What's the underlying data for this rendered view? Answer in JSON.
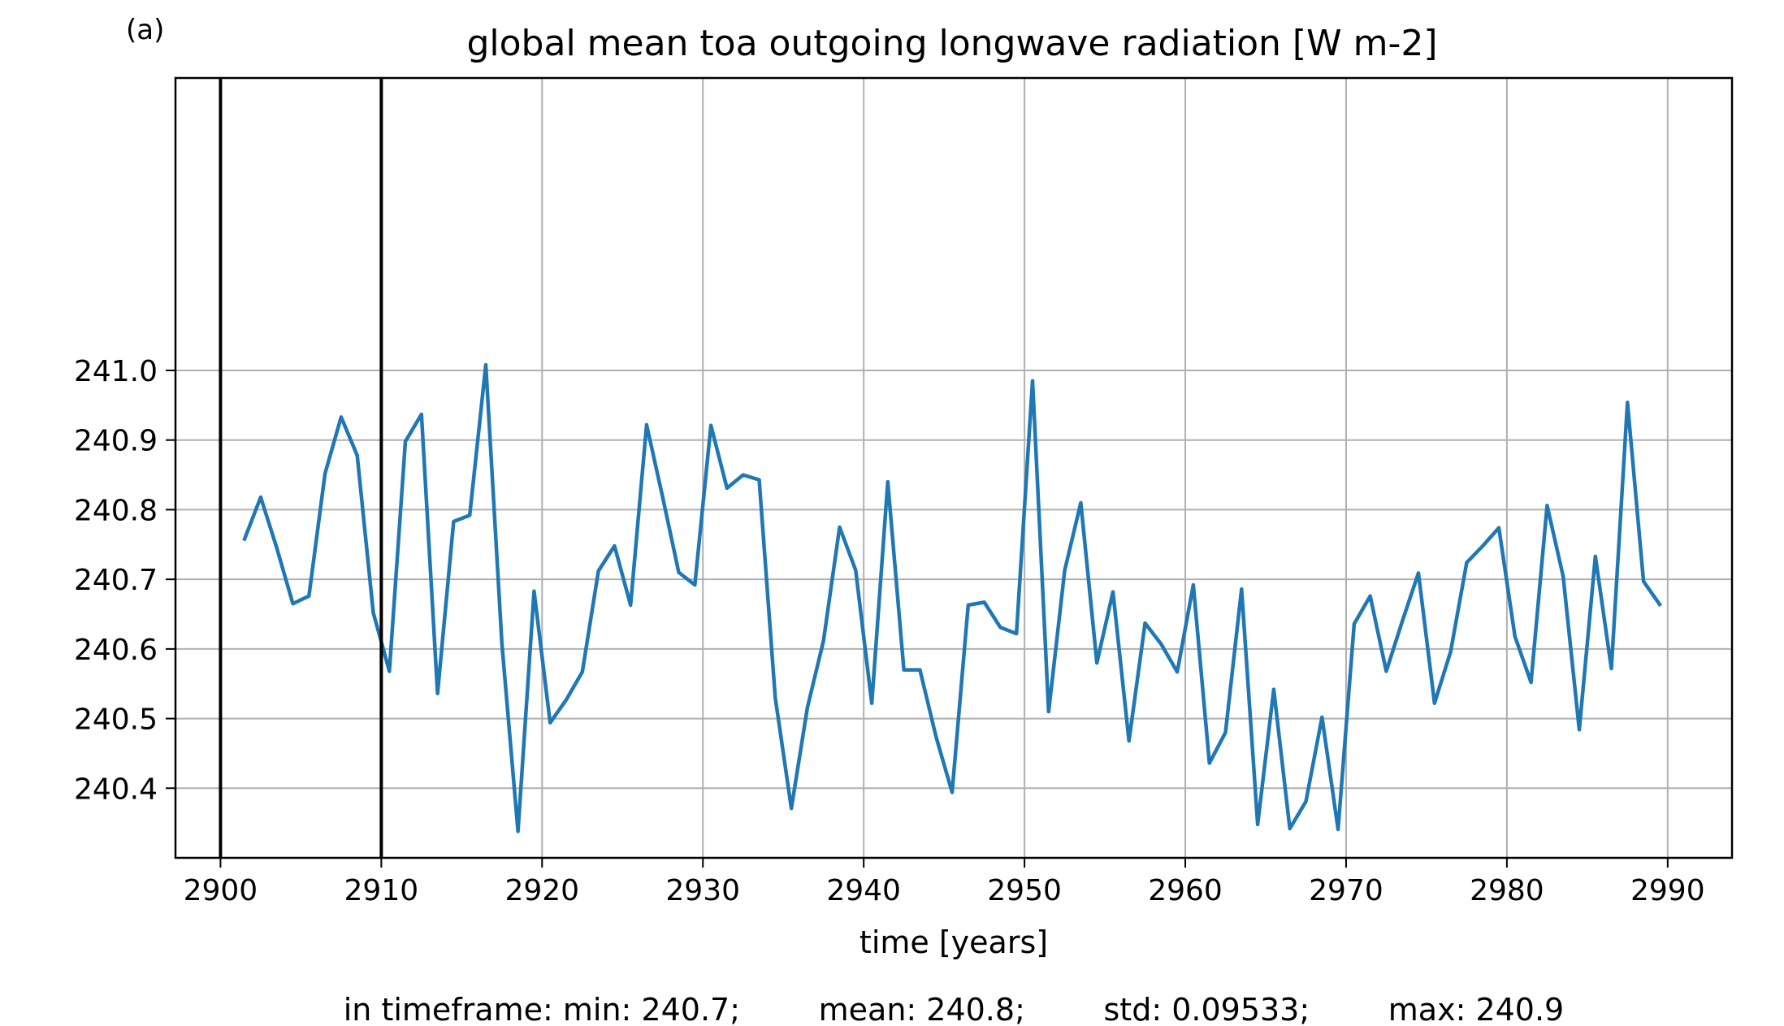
{
  "chart_data": {
    "type": "line",
    "panel_label": "(a)",
    "title": "global mean toa outgoing longwave radiation [W m-2]",
    "xlabel": "time [years]",
    "ylabel": "",
    "xlim": [
      2897.2,
      2994.0
    ],
    "ylim": [
      240.3,
      241.42
    ],
    "xticks": [
      2900,
      2910,
      2920,
      2930,
      2940,
      2950,
      2960,
      2970,
      2980,
      2990
    ],
    "yticks": [
      240.4,
      240.5,
      240.6,
      240.7,
      240.8,
      240.9,
      241.0
    ],
    "ytick_labels": [
      "240.4",
      "240.5",
      "240.6",
      "240.7",
      "240.8",
      "240.9",
      "241.0"
    ],
    "grid": true,
    "vertical_lines": [
      2900,
      2910
    ],
    "series": [
      {
        "color": "#1f77b4",
        "x": [
          2901.5,
          2902.5,
          2903.5,
          2904.5,
          2905.5,
          2906.5,
          2907.5,
          2908.5,
          2909.5,
          2910.5,
          2911.5,
          2912.5,
          2913.5,
          2914.5,
          2915.5,
          2916.5,
          2917.5,
          2918.5,
          2919.5,
          2920.5,
          2921.5,
          2922.5,
          2923.5,
          2924.5,
          2925.5,
          2926.5,
          2927.5,
          2928.5,
          2929.5,
          2930.5,
          2931.5,
          2932.5,
          2933.5,
          2934.5,
          2935.5,
          2936.5,
          2937.5,
          2938.5,
          2939.5,
          2940.5,
          2941.5,
          2942.5,
          2943.5,
          2944.5,
          2945.5,
          2946.5,
          2947.5,
          2948.5,
          2949.5,
          2950.5,
          2951.5,
          2952.5,
          2953.5,
          2954.5,
          2955.5,
          2956.5,
          2957.5,
          2958.5,
          2959.5,
          2960.5,
          2961.5,
          2962.5,
          2963.5,
          2964.5,
          2965.5,
          2966.5,
          2967.5,
          2968.5,
          2969.5,
          2970.5,
          2971.5,
          2972.5,
          2973.5,
          2974.5,
          2975.5,
          2976.5,
          2977.5,
          2978.5,
          2979.5,
          2980.5,
          2981.5,
          2982.5,
          2983.5,
          2984.5,
          2985.5,
          2986.5,
          2987.5,
          2988.5,
          2989.5
        ],
        "y": [
          240.758,
          240.818,
          240.745,
          240.665,
          240.676,
          240.852,
          240.933,
          240.878,
          240.652,
          240.568,
          240.898,
          240.937,
          240.536,
          240.783,
          240.792,
          241.008,
          240.608,
          240.338,
          240.683,
          240.494,
          240.527,
          240.567,
          240.712,
          240.748,
          240.663,
          240.922,
          240.818,
          240.71,
          240.692,
          240.921,
          240.831,
          240.85,
          240.843,
          240.53,
          240.371,
          240.516,
          240.612,
          240.775,
          240.713,
          240.522,
          240.84,
          240.57,
          240.57,
          240.474,
          240.394,
          240.663,
          240.667,
          240.631,
          240.622,
          240.985,
          240.51,
          240.713,
          240.81,
          240.58,
          240.682,
          240.468,
          240.637,
          240.607,
          240.567,
          240.692,
          240.436,
          240.48,
          240.686,
          240.348,
          240.542,
          240.342,
          240.381,
          240.502,
          240.341,
          240.636,
          240.676,
          240.568,
          240.64,
          240.709,
          240.522,
          240.596,
          240.724,
          240.748,
          240.774,
          240.618,
          240.552,
          240.806,
          240.704,
          240.484,
          240.733,
          240.572,
          240.954,
          240.697,
          240.664
        ]
      }
    ],
    "stats_line": "in timeframe: min: 240.7;        mean: 240.8;        std: 0.09533;        max: 240.9"
  }
}
